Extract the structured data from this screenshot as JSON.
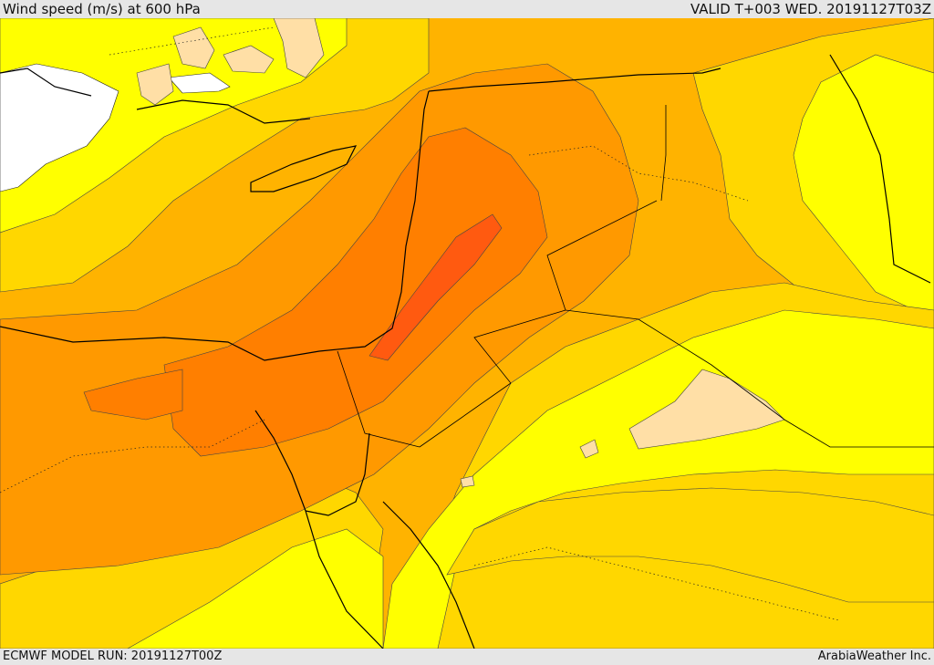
{
  "header": {
    "title": "Wind speed (m/s) at 600 hPa",
    "valid": "VALID T+003 WED. 20191127T03Z"
  },
  "footer": {
    "model_run": "ECMWF MODEL RUN: 20191127T00Z",
    "credit": "ArabiaWeather Inc."
  },
  "map": {
    "layers": [
      {
        "name": "no-color",
        "color": "#ffffff"
      },
      {
        "name": "pale",
        "color": "#ffdfa6"
      },
      {
        "name": "yellow",
        "color": "#ffff00"
      },
      {
        "name": "gold",
        "color": "#ffd700"
      },
      {
        "name": "amber",
        "color": "#ffb300"
      },
      {
        "name": "orange",
        "color": "#ff9900"
      },
      {
        "name": "dark-orange",
        "color": "#ff7f00"
      },
      {
        "name": "red-orange",
        "color": "#ff5a10"
      }
    ],
    "coastline_color": "#000000"
  }
}
